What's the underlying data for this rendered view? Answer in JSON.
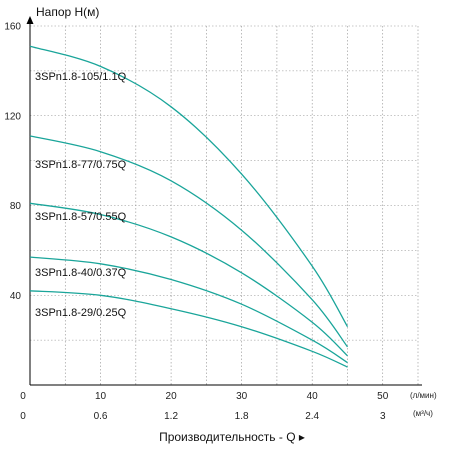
{
  "chart_data": {
    "type": "line",
    "ylabel": "Напор H(м)",
    "xlabel": "Производительность - Q ▸",
    "x_unit_lpm": "(л/мин)",
    "x_unit_m3h": "(м³/ч)",
    "ylim": [
      0,
      160
    ],
    "xlim_lpm": [
      0,
      50
    ],
    "y_ticks": [
      "0",
      "40",
      "80",
      "120",
      "160"
    ],
    "x_ticks_lpm": [
      "0",
      "10",
      "20",
      "30",
      "40",
      "50"
    ],
    "x_ticks_m3h": [
      "0",
      "0.6",
      "1.2",
      "1.8",
      "2.4",
      "3"
    ],
    "grid": true,
    "line_color": "#1aa59a",
    "series": [
      {
        "name": "3SPn1.8-105/1.1Q",
        "x": [
          0,
          10,
          20,
          30,
          40,
          45
        ],
        "y": [
          151,
          142,
          124,
          94,
          53,
          26
        ]
      },
      {
        "name": "3SPn1.8-77/0.75Q",
        "x": [
          0,
          10,
          20,
          30,
          40,
          45
        ],
        "y": [
          111,
          104,
          91,
          69,
          38,
          17
        ]
      },
      {
        "name": "3SPn1.8-57/0.55Q",
        "x": [
          0,
          10,
          20,
          30,
          40,
          45
        ],
        "y": [
          81,
          76,
          66,
          50,
          28,
          13
        ]
      },
      {
        "name": "3SPn1.8-40/0.37Q",
        "x": [
          0,
          10,
          20,
          30,
          40,
          45
        ],
        "y": [
          57,
          54,
          47,
          36,
          20,
          10
        ]
      },
      {
        "name": "3SPn1.8-29/0.25Q",
        "x": [
          0,
          10,
          20,
          30,
          40,
          45
        ],
        "y": [
          42,
          40,
          34,
          26,
          15,
          8
        ]
      }
    ]
  }
}
